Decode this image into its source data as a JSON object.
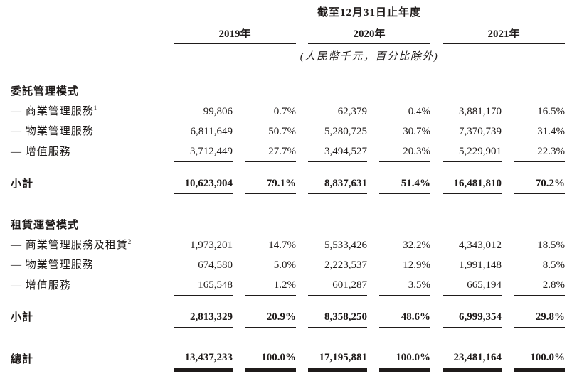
{
  "table": {
    "period_header": "截至12月31日止年度",
    "unit_note": "(人民幣千元，百分比除外)",
    "years": [
      "2019年",
      "2020年",
      "2021年"
    ],
    "sections": [
      {
        "header": "委託管理模式",
        "rows": [
          {
            "label": "— 商業管理服務",
            "footnote": "1",
            "values": [
              "99,806",
              "0.7%",
              "62,379",
              "0.4%",
              "3,881,170",
              "16.5%"
            ]
          },
          {
            "label": "— 物業管理服務",
            "footnote": "",
            "values": [
              "6,811,649",
              "50.7%",
              "5,280,725",
              "30.7%",
              "7,370,739",
              "31.4%"
            ]
          },
          {
            "label": "— 增值服務",
            "footnote": "",
            "values": [
              "3,712,449",
              "27.7%",
              "3,494,527",
              "20.3%",
              "5,229,901",
              "22.3%"
            ]
          }
        ],
        "subtotal": {
          "label": "小計",
          "values": [
            "10,623,904",
            "79.1%",
            "8,837,631",
            "51.4%",
            "16,481,810",
            "70.2%"
          ]
        }
      },
      {
        "header": "租賃運營模式",
        "rows": [
          {
            "label": "— 商業管理服務及租賃",
            "footnote": "2",
            "values": [
              "1,973,201",
              "14.7%",
              "5,533,426",
              "32.2%",
              "4,343,012",
              "18.5%"
            ]
          },
          {
            "label": "— 物業管理服務",
            "footnote": "",
            "values": [
              "674,580",
              "5.0%",
              "2,223,537",
              "12.9%",
              "1,991,148",
              "8.5%"
            ]
          },
          {
            "label": "— 增值服務",
            "footnote": "",
            "values": [
              "165,548",
              "1.2%",
              "601,287",
              "3.5%",
              "665,194",
              "2.8%"
            ]
          }
        ],
        "subtotal": {
          "label": "小計",
          "values": [
            "2,813,329",
            "20.9%",
            "8,358,250",
            "48.6%",
            "6,999,354",
            "29.8%"
          ]
        }
      }
    ],
    "total": {
      "label": "總計",
      "values": [
        "13,437,233",
        "100.0%",
        "17,195,881",
        "100.0%",
        "23,481,164",
        "100.0%"
      ]
    }
  }
}
